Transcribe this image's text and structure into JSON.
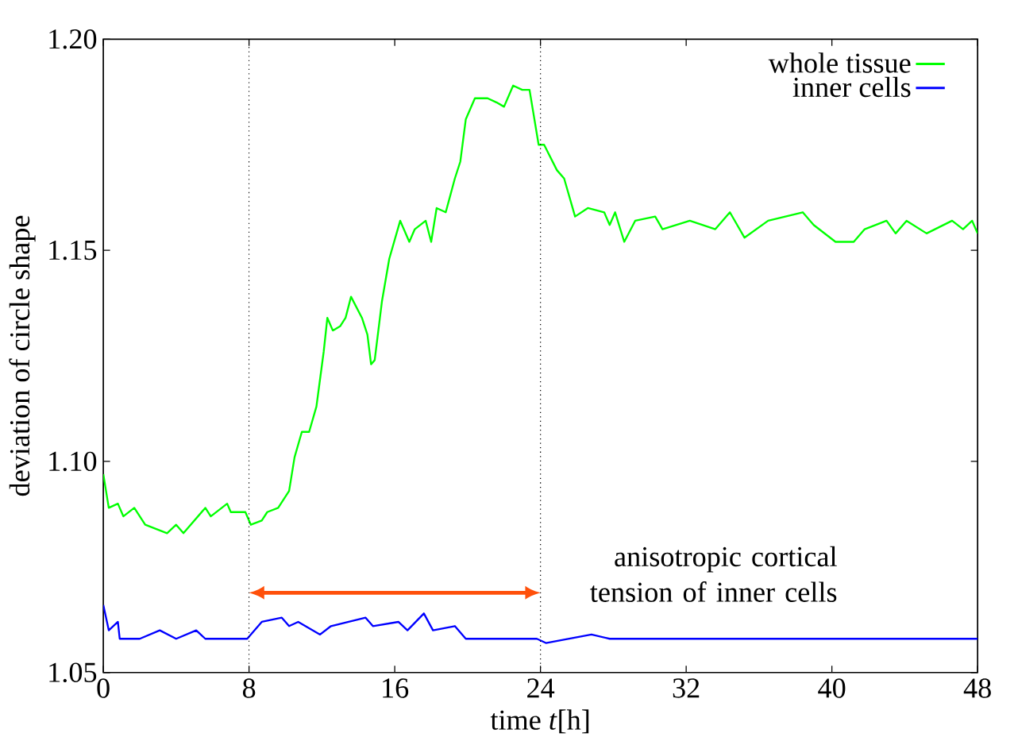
{
  "chart_data": {
    "type": "line",
    "xlabel": "time *t*[h]",
    "ylabel": "deviation of circle shape",
    "xlim": [
      0,
      48
    ],
    "ylim": [
      1.05,
      1.2
    ],
    "xticks": [
      0,
      8,
      16,
      24,
      32,
      40,
      48
    ],
    "yticks": [
      {
        "value": 1.05,
        "label": "1.05"
      },
      {
        "value": 1.1,
        "label": "1.10"
      },
      1.15,
      {
        "value": 1.2,
        "label": "1.20"
      }
    ],
    "legend": "top right",
    "grid": false,
    "marker": "none",
    "line_style": "solid",
    "ref_lines": [
      {
        "axis": "x",
        "value": 8,
        "line_style": "dotted",
        "color": "#000000"
      },
      {
        "axis": "x",
        "value": 24,
        "line_style": "dotted",
        "color": "#000000"
      }
    ],
    "annotations": [
      "anisotropic cortical tension of inner cells"
    ],
    "series": [
      {
        "name": "whole tissue",
        "color": "#00ff00",
        "x": [
          0,
          0.3,
          0.8,
          1.1,
          1.7,
          2.3,
          3.5,
          4.0,
          4.4,
          5.6,
          5.9,
          6.8,
          7.0,
          7.8,
          8.1,
          8.7,
          9.0,
          9.6,
          10.2,
          10.5,
          10.9,
          11.3,
          11.7,
          12.1,
          12.3,
          12.6,
          13.0,
          13.3,
          13.6,
          14.2,
          14.5,
          14.7,
          14.9,
          15.3,
          15.7,
          16.3,
          16.8,
          17.1,
          17.7,
          18.0,
          18.3,
          18.8,
          19.3,
          19.6,
          19.9,
          20.4,
          20.8,
          21.1,
          21.6,
          22.0,
          22.5,
          23.0,
          23.4,
          23.9,
          24.2,
          24.9,
          25.3,
          25.9,
          26.6,
          27.5,
          27.8,
          28.1,
          28.6,
          29.2,
          30.3,
          30.7,
          32.2,
          33.6,
          34.4,
          35.2,
          36.5,
          38.4,
          39.0,
          40.2,
          41.2,
          41.8,
          43.0,
          43.5,
          44.1,
          45.2,
          46.6,
          47.2,
          47.7,
          48.0
        ],
        "values": [
          1.097,
          1.089,
          1.09,
          1.087,
          1.089,
          1.085,
          1.083,
          1.085,
          1.083,
          1.089,
          1.087,
          1.09,
          1.088,
          1.088,
          1.085,
          1.086,
          1.088,
          1.089,
          1.093,
          1.101,
          1.107,
          1.107,
          1.113,
          1.126,
          1.134,
          1.131,
          1.132,
          1.134,
          1.139,
          1.134,
          1.13,
          1.123,
          1.124,
          1.138,
          1.148,
          1.157,
          1.152,
          1.155,
          1.157,
          1.152,
          1.16,
          1.159,
          1.167,
          1.171,
          1.181,
          1.186,
          1.186,
          1.186,
          1.185,
          1.184,
          1.189,
          1.188,
          1.188,
          1.175,
          1.175,
          1.169,
          1.167,
          1.158,
          1.16,
          1.159,
          1.156,
          1.159,
          1.152,
          1.157,
          1.158,
          1.155,
          1.157,
          1.155,
          1.159,
          1.153,
          1.157,
          1.159,
          1.156,
          1.152,
          1.152,
          1.155,
          1.157,
          1.154,
          1.157,
          1.154,
          1.157,
          1.155,
          1.157,
          1.154
        ]
      },
      {
        "name": "inner cells",
        "color": "#0000ff",
        "x": [
          0,
          0.3,
          0.8,
          0.9,
          2.0,
          3.1,
          4.0,
          5.1,
          5.6,
          7.9,
          8.7,
          9.8,
          10.2,
          10.7,
          11.9,
          12.5,
          14.4,
          14.8,
          16.2,
          16.7,
          17.6,
          18.1,
          19.3,
          19.9,
          23.8,
          24.3,
          26.8,
          27.8,
          30.6,
          36.8,
          43.0,
          45.5,
          47.2,
          48.0
        ],
        "values": [
          1.066,
          1.06,
          1.062,
          1.058,
          1.058,
          1.06,
          1.058,
          1.06,
          1.058,
          1.058,
          1.062,
          1.063,
          1.061,
          1.062,
          1.059,
          1.061,
          1.063,
          1.061,
          1.062,
          1.06,
          1.064,
          1.06,
          1.061,
          1.058,
          1.058,
          1.057,
          1.059,
          1.058,
          1.058,
          1.058,
          1.058,
          1.058,
          1.058,
          1.058
        ]
      }
    ]
  }
}
